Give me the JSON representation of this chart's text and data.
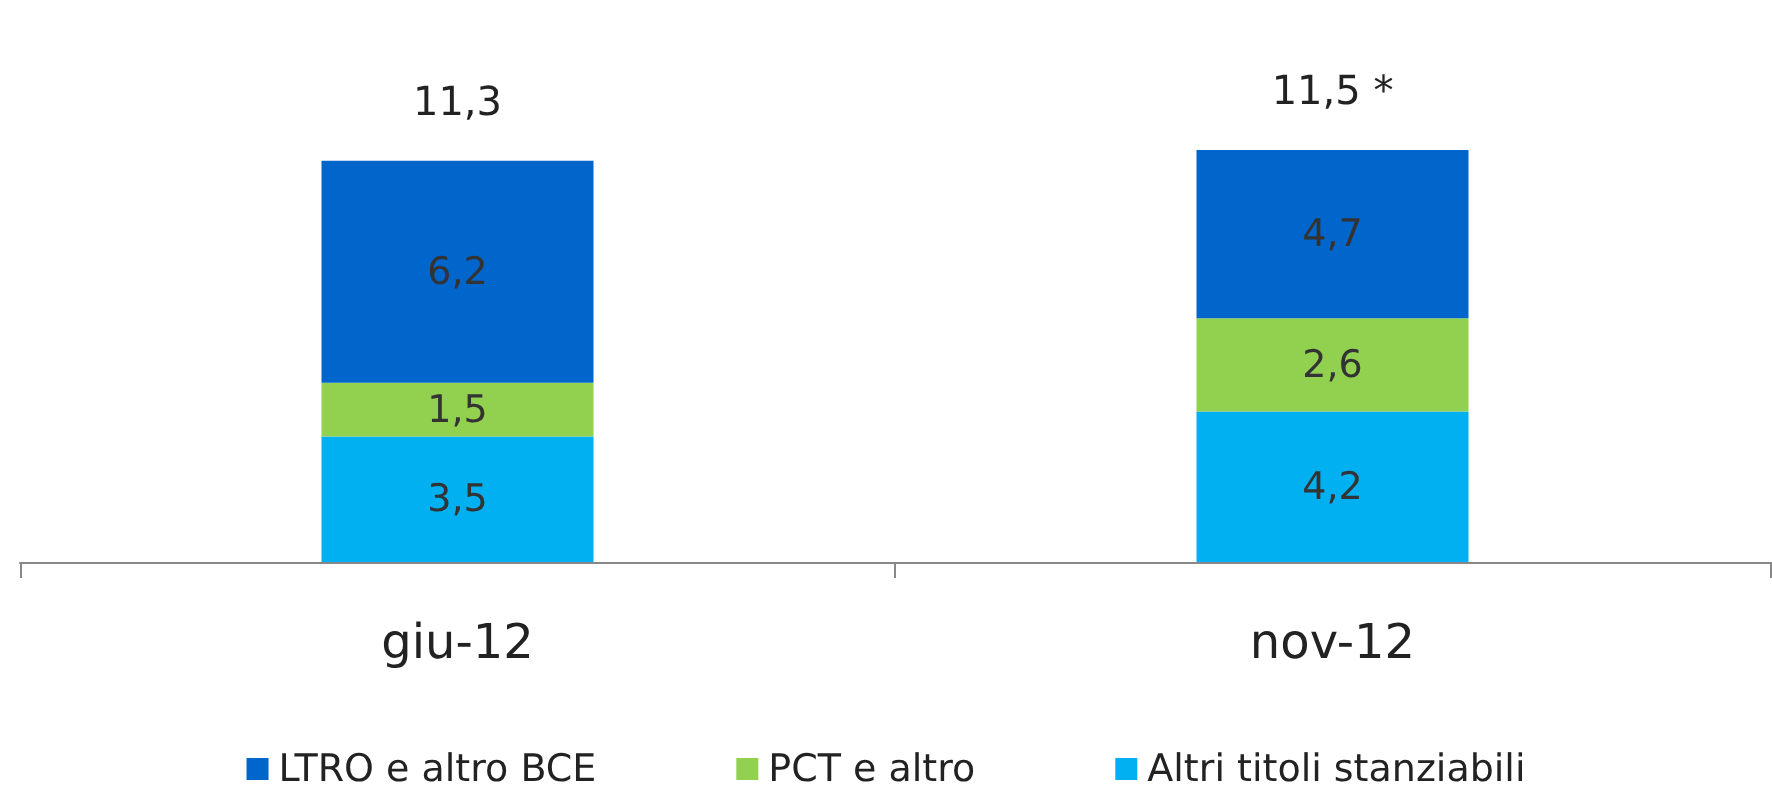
{
  "chart_data": {
    "type": "bar",
    "stacked": true,
    "categories": [
      "giu-12",
      "nov-12"
    ],
    "series": [
      {
        "name": "Altri titoli stanziabili",
        "color": "#00b0f0",
        "values": [
          3.5,
          4.2
        ],
        "value_labels": [
          "3,5",
          "4,2"
        ]
      },
      {
        "name": "PCT e altro",
        "color": "#92d050",
        "values": [
          1.5,
          2.6
        ],
        "value_labels": [
          "1,5",
          "2,6"
        ]
      },
      {
        "name": "LTRO e altro BCE",
        "color": "#0066cc",
        "values": [
          6.2,
          4.7
        ],
        "value_labels": [
          "6,2",
          "4,7"
        ]
      }
    ],
    "totals": [
      "11,3",
      "11,5 *"
    ],
    "legend": "bottom"
  }
}
